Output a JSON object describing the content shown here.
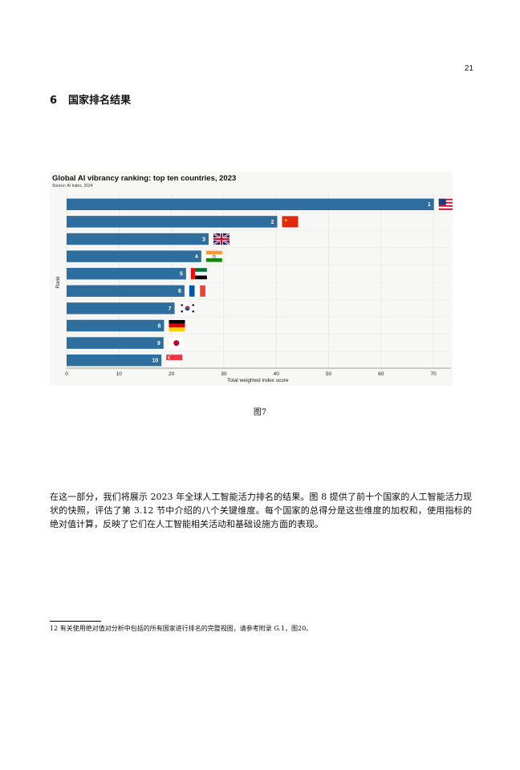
{
  "page": {
    "number": "21",
    "section": {
      "number": "6",
      "title": "国家排名结果"
    },
    "caption": "图7",
    "paragraph": "在这一部分，我们将展示 2023 年全球人工智能活力排名的结果。图 8 提供了前十个国家的人工智能活力现状的快照，评估了第 3.12 节中介绍的八个关键维度。每个国家的总得分是这些维度的加权和，使用指标的绝对值计算，反映了它们在人工智能相关活动和基础设施方面的表现。",
    "footnote": "12 有关使用绝对值对分析中包括的所有国家进行排名的完整视图，请参考附录 G.1，图20。"
  },
  "chart_data": {
    "type": "bar",
    "orientation": "horizontal",
    "title": "Global AI vibrancy ranking: top ten countries, 2023",
    "source": "Source: AI Index, 2024",
    "xlabel": "Total weighted index score",
    "ylabel": "Rank",
    "xlim": [
      0,
      73
    ],
    "xticks": [
      0,
      10,
      20,
      30,
      40,
      50,
      60,
      70
    ],
    "grid": true,
    "bar_color": "#2e6e9e",
    "categories": [
      "1",
      "2",
      "3",
      "4",
      "5",
      "6",
      "7",
      "8",
      "9",
      "10"
    ],
    "values": [
      70.1,
      40.2,
      27.1,
      25.7,
      22.8,
      22.5,
      20.6,
      18.6,
      18.5,
      18.1
    ],
    "flags": [
      "us-flag-icon",
      "china-flag-icon",
      "uk-flag-icon",
      "india-flag-icon",
      "uae-flag-icon",
      "france-flag-icon",
      "korea-flag-icon",
      "germany-flag-icon",
      "japan-flag-icon",
      "singapore-flag-icon"
    ]
  }
}
